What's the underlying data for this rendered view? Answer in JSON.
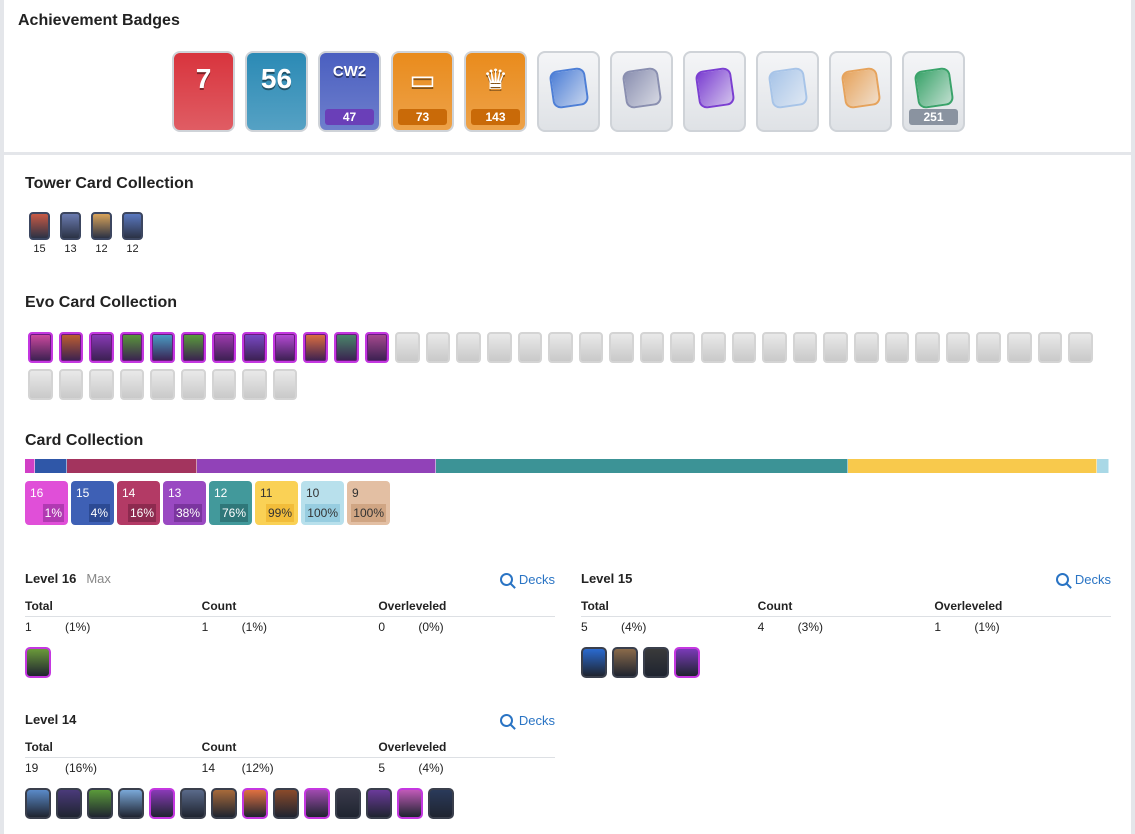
{
  "achievements": {
    "title": "Achievement Badges",
    "badges": [
      {
        "name": "yearly-badge",
        "glyph": "7",
        "count": "",
        "bg": "#d8343d",
        "band": ""
      },
      {
        "name": "level-badge",
        "glyph": "56",
        "count": "",
        "bg": "#2b8ab5",
        "band": ""
      },
      {
        "name": "clan-wars-badge",
        "glyph": "CW2",
        "count": "47",
        "bg": "#4a5fc0",
        "band": "#6a3fb8"
      },
      {
        "name": "card-collector-badge",
        "glyph": "▭",
        "count": "73",
        "bg": "#e98b1c",
        "band": "#c96a08"
      },
      {
        "name": "crown-banner-badge",
        "glyph": "♛",
        "count": "143",
        "bg": "#e98b1c",
        "band": "#c96a08"
      },
      {
        "name": "card-fan-badge",
        "glyph": "",
        "count": "",
        "bg": "",
        "band": "",
        "emblem": "#4e7fd6"
      },
      {
        "name": "double-crown-badge",
        "glyph": "",
        "count": "",
        "bg": "",
        "band": "",
        "emblem": "#8a8fb0"
      },
      {
        "name": "king-tower-badge",
        "glyph": "",
        "count": "",
        "bg": "",
        "band": "",
        "emblem": "#7b3fd1"
      },
      {
        "name": "rainbow-cards-badge",
        "glyph": "",
        "count": "",
        "bg": "",
        "band": "",
        "emblem": "#a7c4e8"
      },
      {
        "name": "gold-crown-badge",
        "glyph": "",
        "count": "",
        "bg": "",
        "band": "",
        "emblem": "#e6a35c"
      },
      {
        "name": "card-shield-badge",
        "glyph": "",
        "count": "251",
        "bg": "",
        "band": "#8a93a0",
        "emblem": "#3aa36a"
      }
    ]
  },
  "tower_collection": {
    "title": "Tower Card Collection",
    "cards": [
      {
        "name": "tower-princess",
        "level": "15",
        "color": "#c95a45"
      },
      {
        "name": "tower-cannoneer",
        "level": "13",
        "color": "#6a7ab0"
      },
      {
        "name": "tower-dagger-duchess",
        "level": "12",
        "color": "#d8a35a"
      },
      {
        "name": "tower-royal-chef",
        "level": "12",
        "color": "#5a78c0"
      }
    ]
  },
  "evo_collection": {
    "title": "Evo Card Collection",
    "owned": [
      "#d04aa0",
      "#c06030",
      "#8a3ab8",
      "#5a9a3a",
      "#4aa0c8",
      "#5aa03a",
      "#a03ab0",
      "#7a4ac8",
      "#b84ad8",
      "#e07040",
      "#4a8a6a",
      "#a84a90"
    ],
    "locked_count": 32
  },
  "card_collection": {
    "title": "Card Collection",
    "bar_segments": [
      {
        "name": "lvl-16",
        "fraction": 0.009,
        "color": "#d13fc6"
      },
      {
        "name": "lvl-15",
        "fraction": 0.03,
        "color": "#2f57a8"
      },
      {
        "name": "lvl-14",
        "fraction": 0.12,
        "color": "#a3345e"
      },
      {
        "name": "lvl-13",
        "fraction": 0.22,
        "color": "#9142b8"
      },
      {
        "name": "lvl-12",
        "fraction": 0.38,
        "color": "#3c9396"
      },
      {
        "name": "lvl-11",
        "fraction": 0.23,
        "color": "#f8c94c"
      },
      {
        "name": "lvl-10",
        "fraction": 0.011,
        "color": "#a9d8e6"
      }
    ],
    "legend": [
      {
        "level": "16",
        "pct": "1%",
        "bg": "#e04fd8",
        "pct_bg": "#b13ab2",
        "fg": "#fff"
      },
      {
        "level": "15",
        "pct": "4%",
        "bg": "#3e60b5",
        "pct_bg": "#2c4a94",
        "fg": "#fff"
      },
      {
        "level": "14",
        "pct": "16%",
        "bg": "#b33a65",
        "pct_bg": "#8d2a4f",
        "fg": "#fff"
      },
      {
        "level": "13",
        "pct": "38%",
        "bg": "#9a49c2",
        "pct_bg": "#7b359f",
        "fg": "#fff"
      },
      {
        "level": "12",
        "pct": "76%",
        "bg": "#42999b",
        "pct_bg": "#2f7779",
        "fg": "#fff"
      },
      {
        "level": "11",
        "pct": "99%",
        "bg": "#fad155",
        "pct_bg": "#f2bd3a",
        "fg": "#333"
      },
      {
        "level": "10",
        "pct": "100%",
        "bg": "#b8e0ec",
        "pct_bg": "#97cde0",
        "fg": "#333"
      },
      {
        "level": "9",
        "pct": "100%",
        "bg": "#e3bfa3",
        "pct_bg": "#d0a583",
        "fg": "#333"
      }
    ]
  },
  "levels": {
    "decks_label": "Decks",
    "headers": {
      "total": "Total",
      "count": "Count",
      "overleveled": "Overleveled"
    },
    "l16": {
      "title": "Level 16",
      "tag": "Max",
      "total": "1",
      "total_pct": "(1%)",
      "count": "1",
      "count_pct": "(1%)",
      "over": "0",
      "over_pct": "(0%)",
      "cards": [
        {
          "color": "#6a9a3a",
          "evo": true
        }
      ]
    },
    "l15": {
      "title": "Level 15",
      "tag": "",
      "total": "5",
      "total_pct": "(4%)",
      "count": "4",
      "count_pct": "(3%)",
      "over": "1",
      "over_pct": "(1%)",
      "cards": [
        {
          "color": "#2a6ad0",
          "evo": false
        },
        {
          "color": "#8a6a4a",
          "evo": false
        },
        {
          "color": "#3a3a3a",
          "evo": false
        },
        {
          "color": "#7a3ab8",
          "evo": true
        }
      ]
    },
    "l14": {
      "title": "Level 14",
      "tag": "",
      "total": "19",
      "total_pct": "(16%)",
      "count": "14",
      "count_pct": "(12%)",
      "over": "5",
      "over_pct": "(4%)",
      "cards": [
        {
          "color": "#5a8ac8",
          "evo": false
        },
        {
          "color": "#4a3a7a",
          "evo": false
        },
        {
          "color": "#5a9a3a",
          "evo": false
        },
        {
          "color": "#7aa8d8",
          "evo": false
        },
        {
          "color": "#8a3ab8",
          "evo": true
        },
        {
          "color": "#5a6a8a",
          "evo": false
        },
        {
          "color": "#a86a3a",
          "evo": false
        },
        {
          "color": "#e07040",
          "evo": true
        },
        {
          "color": "#8a4a2a",
          "evo": false
        },
        {
          "color": "#a04ab0",
          "evo": true
        },
        {
          "color": "#3a3a4a",
          "evo": false
        },
        {
          "color": "#6a3a9a",
          "evo": false
        },
        {
          "color": "#c05ab8",
          "evo": true
        },
        {
          "color": "#2a3a5a",
          "evo": false
        }
      ]
    }
  }
}
